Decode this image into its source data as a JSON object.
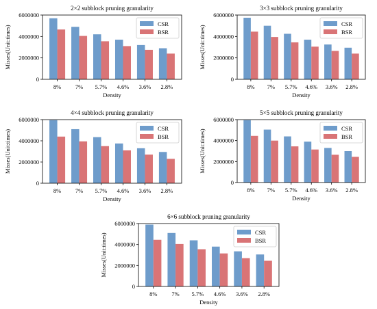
{
  "colors": {
    "csr": "#6e9ccb",
    "bsr": "#d97476"
  },
  "chart_data": [
    {
      "type": "bar",
      "title": "2×2 subblock pruning granularity",
      "xlabel": "Density",
      "ylabel": "Misses(Unit:times)",
      "categories": [
        "8%",
        "7%",
        "5.7%",
        "4.6%",
        "3.6%",
        "2.8%"
      ],
      "series": [
        {
          "name": "CSR",
          "values": [
            5700000,
            4900000,
            4200000,
            3700000,
            3200000,
            2900000
          ]
        },
        {
          "name": "BSR",
          "values": [
            4650000,
            4050000,
            3550000,
            3100000,
            2750000,
            2400000
          ]
        }
      ],
      "yticks": [
        "0",
        "2000000",
        "4000000",
        "6000000"
      ],
      "ylim": [
        0,
        6000000
      ],
      "legend": "top-right",
      "grid": false
    },
    {
      "type": "bar",
      "title": "3×3 subblock pruning granularity",
      "xlabel": "Density",
      "ylabel": "Misses(Unit:times)",
      "categories": [
        "8%",
        "7%",
        "5.7%",
        "4.6%",
        "3.6%",
        "2.8%"
      ],
      "series": [
        {
          "name": "CSR",
          "values": [
            5750000,
            5000000,
            4250000,
            3700000,
            3250000,
            2950000
          ]
        },
        {
          "name": "BSR",
          "values": [
            4450000,
            3950000,
            3450000,
            3050000,
            2650000,
            2400000
          ]
        }
      ],
      "yticks": [
        "0",
        "2000000",
        "4000000",
        "6000000"
      ],
      "ylim": [
        0,
        6000000
      ],
      "legend": "top-right",
      "grid": false
    },
    {
      "type": "bar",
      "title": "4×4 subblock pruning granularity",
      "xlabel": "Density",
      "ylabel": "Misses(Unit:times)",
      "categories": [
        "8%",
        "7%",
        "5.7%",
        "4.6%",
        "3.6%",
        "2.8%"
      ],
      "series": [
        {
          "name": "CSR",
          "values": [
            5950000,
            5100000,
            4350000,
            3750000,
            3300000,
            2950000
          ]
        },
        {
          "name": "BSR",
          "values": [
            4400000,
            3950000,
            3500000,
            3100000,
            2700000,
            2300000
          ]
        }
      ],
      "yticks": [
        "0",
        "2000000",
        "4000000",
        "6000000"
      ],
      "ylim": [
        0,
        6000000
      ],
      "legend": "top-right",
      "grid": false
    },
    {
      "type": "bar",
      "title": "5×5 subblock pruning granularity",
      "xlabel": "Density",
      "ylabel": "Misses(Unit:times)",
      "categories": [
        "8%",
        "7%",
        "5.7%",
        "4.6%",
        "3.6%",
        "2.8%"
      ],
      "series": [
        {
          "name": "CSR",
          "values": [
            5950000,
            5050000,
            4400000,
            3900000,
            3300000,
            3000000
          ]
        },
        {
          "name": "BSR",
          "values": [
            4450000,
            4000000,
            3450000,
            3150000,
            2650000,
            2450000
          ]
        }
      ],
      "yticks": [
        "0",
        "2000000",
        "4000000",
        "6000000"
      ],
      "ylim": [
        0,
        6000000
      ],
      "legend": "top-right",
      "grid": false
    },
    {
      "type": "bar",
      "title": "6×6 subblock pruning granularity",
      "xlabel": "Density",
      "ylabel": "Misses(Unit:times)",
      "categories": [
        "8%",
        "7%",
        "5.7%",
        "4.6%",
        "3.6%",
        "2.8%"
      ],
      "series": [
        {
          "name": "CSR",
          "values": [
            5900000,
            5100000,
            4400000,
            3800000,
            3350000,
            3050000
          ]
        },
        {
          "name": "BSR",
          "values": [
            4450000,
            4050000,
            3550000,
            3150000,
            2700000,
            2450000
          ]
        }
      ],
      "yticks": [
        "0",
        "2000000",
        "4000000",
        "6000000"
      ],
      "ylim": [
        0,
        6000000
      ],
      "legend": "top-right",
      "grid": false
    }
  ]
}
